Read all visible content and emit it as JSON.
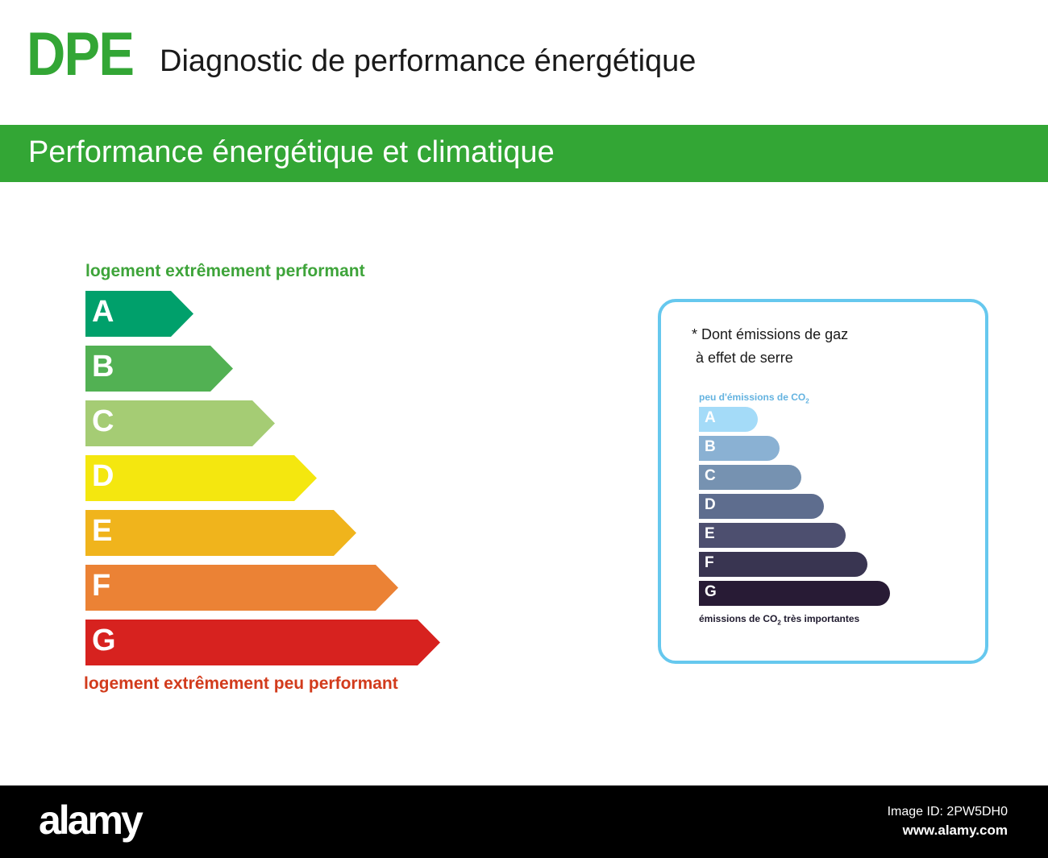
{
  "header": {
    "logo": "DPE",
    "title": "Diagnostic de performance énergétique"
  },
  "section": {
    "title": "Performance énergétique et climatique"
  },
  "energy_scale": {
    "top_label": "logement extrêmement performant",
    "bottom_label": "logement extrêmement peu performant",
    "classes": [
      {
        "letter": "A",
        "color": "#00a06b"
      },
      {
        "letter": "B",
        "color": "#52b153"
      },
      {
        "letter": "C",
        "color": "#a5cc74"
      },
      {
        "letter": "D",
        "color": "#f4e70f"
      },
      {
        "letter": "E",
        "color": "#f0b41c"
      },
      {
        "letter": "F",
        "color": "#eb8235"
      },
      {
        "letter": "G",
        "color": "#d7221f"
      }
    ]
  },
  "ges_scale": {
    "note": "* Dont émissions de gaz\n à effet de serre",
    "top_label_prefix": "peu d'émissions de CO",
    "top_label_sub": "2",
    "bottom_label_prefix": "émissions de CO",
    "bottom_label_sub": "2",
    "bottom_label_suffix": " très importantes",
    "classes": [
      {
        "letter": "A",
        "color": "#a4dbf8"
      },
      {
        "letter": "B",
        "color": "#8ab1d3"
      },
      {
        "letter": "C",
        "color": "#7692b1"
      },
      {
        "letter": "D",
        "color": "#5e6d8e"
      },
      {
        "letter": "E",
        "color": "#4d4f6f"
      },
      {
        "letter": "F",
        "color": "#393551"
      },
      {
        "letter": "G",
        "color": "#281b35"
      }
    ]
  },
  "footer": {
    "brand": "alamy",
    "image_id": "Image ID: 2PW5DH0",
    "website": "www.alamy.com"
  }
}
